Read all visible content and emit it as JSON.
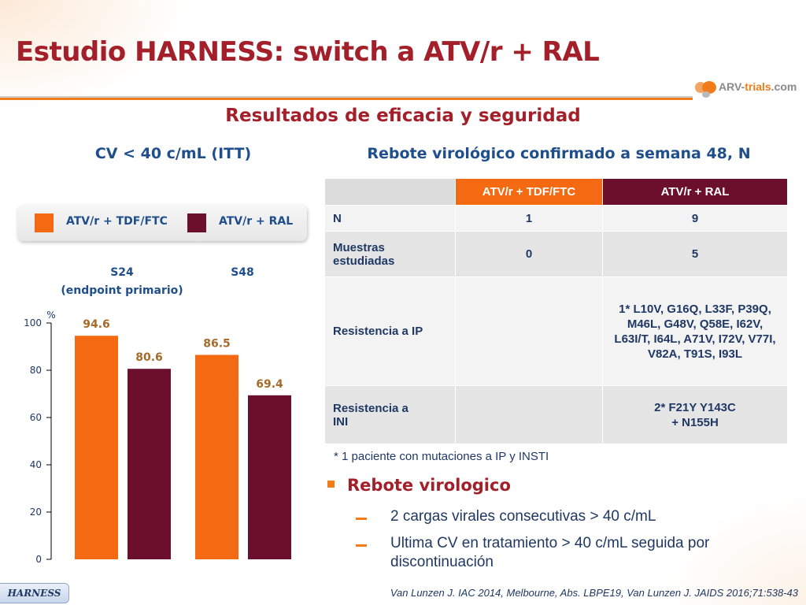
{
  "title": "Estudio HARNESS: switch a ATV/r + RAL",
  "logo": {
    "text_prefix": "ARV-",
    "text_highlight": "trials",
    "text_suffix": ".com"
  },
  "subtitle": "Resultados de eficacia y seguridad",
  "left_heading": "CV < 40 c/mL (ITT)",
  "right_heading": "Rebote virológico confirmado a semana 48, N",
  "legend": {
    "items": [
      {
        "label": "ATV/r + TDF/FTC",
        "color": "#f36a12"
      },
      {
        "label": "ATV/r + RAL",
        "color": "#6b0f2d"
      }
    ]
  },
  "chart_data": {
    "type": "bar",
    "categories": [
      "S24\n(endpoint primario)",
      "S48"
    ],
    "category_lines": [
      [
        "S24",
        "(endpoint primario)"
      ],
      [
        "S48"
      ]
    ],
    "series": [
      {
        "name": "ATV/r + TDF/FTC",
        "color": "#f36a12",
        "values": [
          94.6,
          86.5
        ]
      },
      {
        "name": "ATV/r + RAL",
        "color": "#6b0f2d",
        "values": [
          80.6,
          69.4
        ]
      }
    ],
    "ylabel": "%",
    "ylim": [
      0,
      100
    ],
    "yticks": [
      0,
      20,
      40,
      60,
      80,
      100
    ],
    "data_labels": true,
    "title": "",
    "xlabel": ""
  },
  "table": {
    "headers": [
      "",
      "ATV/r + TDF/FTC",
      "ATV/r + RAL"
    ],
    "rows": [
      {
        "label": "N",
        "a": "1",
        "b": "9"
      },
      {
        "label": "Muestras estudiadas",
        "a": "0",
        "b": "5"
      },
      {
        "label": "Resistencia a IP",
        "a": "",
        "b": "1* L10V, G16Q, L33F, P39Q, M46L, G48V, Q58E, I62V, L63I/T, I64L, A71V, I72V, V77I, V82A, T91S, I93L"
      },
      {
        "label": "Resistencia a INI",
        "a": "",
        "b": "2* F21Y Y143C + N155H"
      }
    ]
  },
  "footnote": "* 1 paciente con mutaciones a IP y INSTI",
  "bullet": {
    "heading": "Rebote virologico",
    "items": [
      "2 cargas virales consecutivas > 40 c/mL",
      "Ultima CV en tratamiento > 40 c/mL seguida por discontinuación"
    ]
  },
  "badge": "HARNESS",
  "citation": "Van Lunzen J. IAC 2014, Melbourne, Abs. LBPE19, Van Lunzen J. JAIDS 2016;71:538-43"
}
